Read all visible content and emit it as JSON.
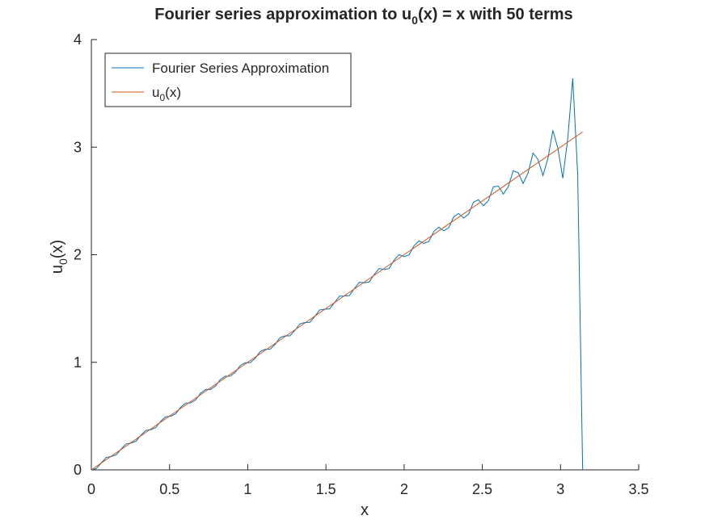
{
  "chart_data": {
    "type": "line",
    "title": {
      "prefix": "Fourier series approximation to u",
      "sub": "0",
      "suffix": "(x) = x with 50 terms"
    },
    "xlabel": "x",
    "ylabel": {
      "main": "u",
      "sub": "0",
      "suffix": "(x)"
    },
    "xlim": [
      0,
      3.5
    ],
    "ylim": [
      0,
      4
    ],
    "xticks": [
      "0",
      "0.5",
      "1",
      "1.5",
      "2",
      "2.5",
      "3",
      "3.5"
    ],
    "yticks": [
      "0",
      "1",
      "2",
      "3",
      "4"
    ],
    "grid": false,
    "legend_position": "top-left",
    "series": [
      {
        "name": "Fourier Series Approximation",
        "color": "#0072BD",
        "x_range": [
          0,
          3.14159
        ],
        "terms": 50,
        "num_points": 100
      },
      {
        "name": {
          "main": "u",
          "sub": "0",
          "suffix": "(x)"
        },
        "color": "#D95319",
        "x": [
          0,
          3.14159
        ],
        "y": [
          0,
          3.14159
        ]
      }
    ]
  }
}
